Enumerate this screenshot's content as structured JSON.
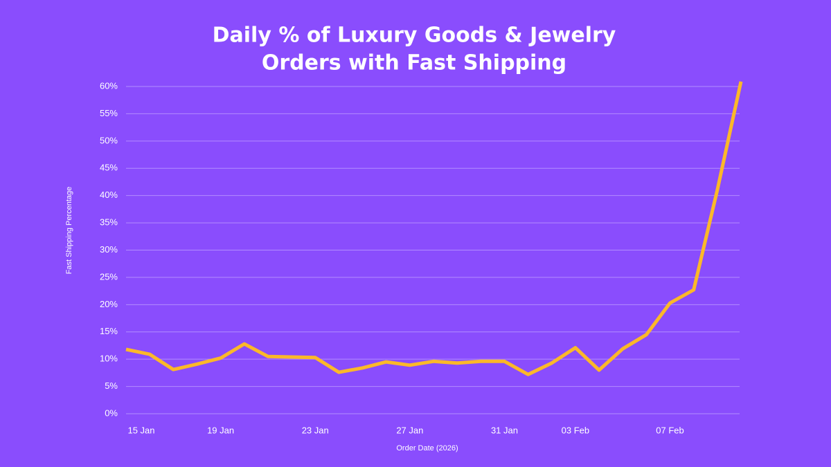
{
  "chart_data": {
    "type": "line",
    "title": [
      "Daily % of Luxury Goods & Jewelry",
      "Orders with Fast Shipping"
    ],
    "x_label": "Order Date (2026)",
    "y_label": "Fast Shipping Percentage",
    "categories": [
      "15 Jan",
      null,
      null,
      null,
      "19 Jan",
      null,
      null,
      null,
      "23 Jan",
      null,
      null,
      null,
      "27 Jan",
      null,
      null,
      null,
      "31 Jan",
      null,
      null,
      "03 Feb",
      null,
      null,
      null,
      "07 Feb",
      null,
      null,
      null
    ],
    "series": [
      {
        "name": "Fast Shipping Percentage",
        "color": "#fbb829",
        "values": [
          11.8,
          10.9,
          8.1,
          9.1,
          10.2,
          12.8,
          10.5,
          10.4,
          10.3,
          7.6,
          8.4,
          9.5,
          8.9,
          9.6,
          9.3,
          9.6,
          9.6,
          7.2,
          9.3,
          12.1,
          8.0,
          11.9,
          14.5,
          20.3,
          22.7,
          41.0,
          60.9
        ]
      }
    ],
    "ylim": [
      0,
      60
    ],
    "yticks": [
      {
        "value": 0,
        "label": "0%"
      },
      {
        "value": 5,
        "label": "5%"
      },
      {
        "value": 10,
        "label": "10%"
      },
      {
        "value": 15,
        "label": "15%"
      },
      {
        "value": 20,
        "label": "20%"
      },
      {
        "value": 25,
        "label": "25%"
      },
      {
        "value": 30,
        "label": "30%"
      },
      {
        "value": 35,
        "label": "35%"
      },
      {
        "value": 40,
        "label": "40%"
      },
      {
        "value": 45,
        "label": "45%"
      },
      {
        "value": 50,
        "label": "50%"
      },
      {
        "value": 55,
        "label": "55%"
      },
      {
        "value": 60,
        "label": "60%"
      }
    ],
    "grid": true
  }
}
